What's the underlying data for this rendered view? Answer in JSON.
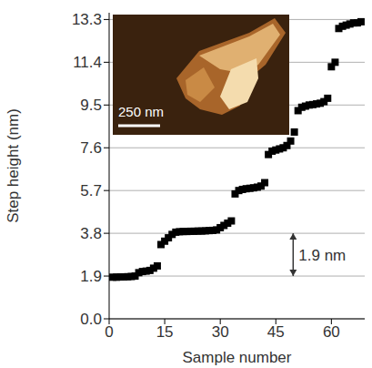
{
  "chart_data": {
    "type": "scatter",
    "xlabel": "Sample number",
    "ylabel": "Step height (nm)",
    "x": [
      1,
      2,
      3,
      4,
      5,
      6,
      7,
      8,
      9,
      10,
      11,
      12,
      13,
      14,
      15,
      16,
      17,
      18,
      19,
      20,
      21,
      22,
      23,
      24,
      25,
      26,
      27,
      28,
      29,
      30,
      31,
      32,
      33,
      34,
      35,
      36,
      37,
      38,
      39,
      40,
      41,
      42,
      43,
      44,
      45,
      46,
      47,
      48,
      49,
      50,
      51,
      52,
      53,
      54,
      55,
      56,
      57,
      58,
      59,
      60,
      61,
      62,
      63,
      64,
      65,
      66,
      67,
      68
    ],
    "values": [
      1.85,
      1.85,
      1.86,
      1.86,
      1.87,
      1.88,
      1.9,
      2.05,
      2.1,
      2.12,
      2.15,
      2.25,
      2.35,
      3.3,
      3.45,
      3.6,
      3.75,
      3.85,
      3.87,
      3.88,
      3.88,
      3.89,
      3.89,
      3.9,
      3.9,
      3.91,
      3.92,
      3.93,
      3.95,
      4.05,
      4.15,
      4.25,
      4.35,
      5.55,
      5.7,
      5.75,
      5.78,
      5.8,
      5.82,
      5.85,
      5.9,
      6.05,
      7.3,
      7.45,
      7.5,
      7.55,
      7.6,
      7.7,
      7.9,
      8.3,
      9.25,
      9.4,
      9.45,
      9.5,
      9.52,
      9.55,
      9.58,
      9.65,
      9.8,
      11.2,
      11.4,
      12.9,
      13.0,
      13.05,
      13.1,
      13.15,
      13.15,
      13.2
    ],
    "color": "#000000",
    "marker": "square",
    "xlim": [
      0,
      69
    ],
    "ylim": [
      0,
      13.6
    ],
    "xticks": [
      0,
      15,
      30,
      45,
      60
    ],
    "yticks": [
      {
        "value": 0,
        "label": "0.0"
      },
      1.9,
      3.8,
      5.7,
      7.6,
      9.5,
      11.4,
      13.3
    ],
    "grid": true,
    "annotations": [
      {
        "text": "1.9 nm",
        "from": 1.9,
        "to": 3.8
      }
    ],
    "inset": {
      "scale_bar_label": "250 nm"
    }
  }
}
